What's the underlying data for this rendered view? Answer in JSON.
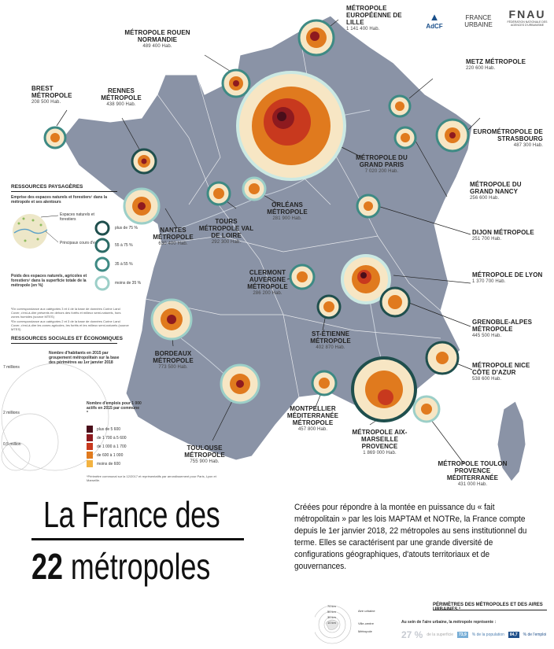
{
  "metropoles": [
    {
      "name": "MÉTROPOLE EUROPÉENNE DE LILLE",
      "pop": "1 141 400 Hab."
    },
    {
      "name": "MÉTROPOLE ROUEN NORMANDIE",
      "pop": "489 400 Hab."
    },
    {
      "name": "BREST MÉTROPOLE",
      "pop": "208 500 Hab."
    },
    {
      "name": "RENNES MÉTROPOLE",
      "pop": "438 900 Hab."
    },
    {
      "name": "METZ MÉTROPOLE",
      "pop": "220 600 Hab."
    },
    {
      "name": "EUROMÉTROPOLE DE STRASBOURG",
      "pop": "487 300 Hab."
    },
    {
      "name": "MÉTROPOLE DU GRAND PARIS",
      "pop": "7 020 200 Hab."
    },
    {
      "name": "MÉTROPOLE DU GRAND NANCY",
      "pop": "256 600 Hab."
    },
    {
      "name": "ORLÉANS MÉTROPOLE",
      "pop": "281 900 Hab."
    },
    {
      "name": "TOURS MÉTROPOLE VAL DE LOIRE",
      "pop": "292 300 Hab."
    },
    {
      "name": "DIJON MÉTROPOLE",
      "pop": "251 700 Hab."
    },
    {
      "name": "NANTES MÉTROPOLE",
      "pop": "630 400 Hab."
    },
    {
      "name": "MÉTROPOLE DE LYON",
      "pop": "1 370 700 Hab."
    },
    {
      "name": "CLERMONT AUVERGNE MÉTROPOLE",
      "pop": "286 200 Hab."
    },
    {
      "name": "ST-ÉTIENNE MÉTROPOLE",
      "pop": "402 870 Hab."
    },
    {
      "name": "GRENOBLE-ALPES MÉTROPOLE",
      "pop": "445 500 Hab."
    },
    {
      "name": "BORDEAUX MÉTROPOLE",
      "pop": "773 500 Hab."
    },
    {
      "name": "MÉTROPOLE NICE CÔTE D'AZUR",
      "pop": "538 600 Hab."
    },
    {
      "name": "MONTPELLIER MÉDITERRANÉE MÉTROPOLE",
      "pop": "457 800 Hab."
    },
    {
      "name": "MÉTROPOLE AIX-MARSEILLE PROVENCE",
      "pop": "1 869 000 Hab."
    },
    {
      "name": "TOULOUSE MÉTROPOLE",
      "pop": "755 900 Hab."
    },
    {
      "name": "MÉTROPOLE TOULON PROVENCE MÉDITERRANÉE",
      "pop": "431 000 Hab."
    }
  ],
  "legend": {
    "paysage_title": "RESSOURCES PAYSAGÈRES",
    "paysage_sub": "Emprise des espaces naturels et forestiers¹ dans la métropole et ses alentours",
    "espaces_label": "Espaces naturels et forestiers",
    "cours_label": "Principaux cours d'eau",
    "poids_title": "Poids des espaces naturels, agricoles et forestiers² dans la superficie totale de la métropole (en %)",
    "rings": [
      "plus de 75 %",
      "55 à 75 %",
      "35 à 55 %",
      "moins de 35 %"
    ],
    "note1": "¹En correspondance aux catégories 3 et 4 de la base de données Corine Land Cover, c'est-à-dire présents en dehors des forêts et milieux semi-naturels, hors zones humides (source MTES)",
    "note2": "²En correspondance aux catégories 2 et 3 de la base de données Corine Land Cover, c'est-à-dire les zones agricoles, les forêts et les milieux semi-naturels (source MTES)",
    "social_title": "RESSOURCES SOCIALES ET ÉCONOMIQUES",
    "habitants_title": "Nombre d'habitants en 2015 par groupement métropolitain sur la base des périmètres au 1er janvier 2018",
    "circle_sizes": [
      "7 millions",
      "2 millions",
      "0,5 million"
    ],
    "emplois_title": "Nombre d'emplois pour 1 000 actifs en 2015 par commune *",
    "emplois_classes": [
      "plus de 5 600",
      "de 1 700 à 5 600",
      "de 1 000 à 1 700",
      "de 600 à 1 000",
      "moins de 600"
    ],
    "emplois_colors": [
      "#4a0e1a",
      "#8e1a1f",
      "#c8391e",
      "#e07a1e",
      "#f3b341"
    ],
    "emplois_note": "*Périmètre communal sur la 12/2017 et représentatifs par arrondissement pour Paris, Lyon et Marseille."
  },
  "title": {
    "line1": "La France des",
    "line2_num": "22",
    "line2_word": "métropoles"
  },
  "intro": "Créées pour répondre à la montée en puissance du « fait métropolitain » par les lois MAPTAM et NOTRe, la France compte depuis le 1er janvier 2018, 22 métropoles au sens institutionnel du terme. Elles se caractérisent par une grande diversité de configurations géographiques, d'atouts territoriaux et de gouvernances.",
  "logos": {
    "adcf": "AdCF",
    "france_urbaine": "FRANCE URBAINE",
    "fnau": "FNAU",
    "fnau_text": "FÉDÉRATION NATIONALE DES AGENCES D'URBANISME"
  },
  "bottom": {
    "title": "PÉRIMÈTRES DES MÉTROPOLES ET DES AIRES URBAINES ³",
    "sub": "Au sein de l'aire urbaine, la métropole représente :",
    "stat1_val": "27 %",
    "stat1_label": "de la superficie",
    "stat2_val": "73,9",
    "stat2_label": "% de la population",
    "stat3_val": "84,7",
    "stat3_label": "% de l'emploi",
    "radius_labels": [
      "70 km",
      "50 km",
      "30 km",
      "10 km"
    ],
    "aire_labels": [
      "Aire urbaine",
      "Ville-centre",
      "Métropole"
    ]
  },
  "colors": {
    "map_fill": "#8a93a6",
    "border": "#ffffff",
    "ring_dark": "#1f4f4d",
    "ring_mid": "#3e8a84",
    "ring_light": "#9ccfc8"
  }
}
